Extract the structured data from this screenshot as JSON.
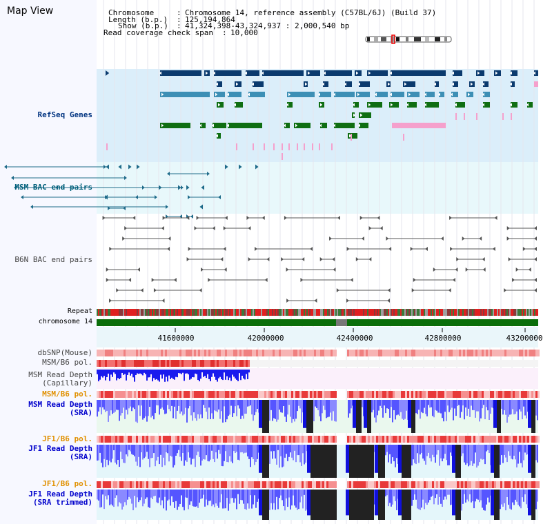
{
  "window": {
    "title": "Map View"
  },
  "header": {
    "chromosome_key": "Chromosome",
    "chromosome_val": "Chromosome 14, reference assembly (C57BL/6J) (Build 37)",
    "length_key": "Length (b.p.)",
    "length_val": "125,194,864",
    "show_key": "Show (b.p.)",
    "show_val": "41,324,398-43,324,937 : 2,000,540 bp",
    "coverage_key": "Read coverage check span",
    "coverage_val": "10,000"
  },
  "tracks": {
    "refseq": "RefSeq Genes",
    "msm_bac": "MSM BAC end pairs",
    "b6n_bac": "B6N BAC end pairs",
    "repeat": "Repeat",
    "chromosome": "chromosome 14",
    "dbsnp": "dbSNP(Mouse)",
    "msm_b6_pol_1": "MSM/B6 pol.",
    "msm_depth_cap_1": "MSM Read Depth",
    "msm_depth_cap_2": "(Capillary)",
    "msm_b6_pol_2": "MSM/B6 pol.",
    "msm_depth_sra_1": "MSM Read Depth",
    "msm_depth_sra_2": "(SRA)",
    "jf1_b6_pol_1": "JF1/B6 pol.",
    "jf1_depth_sra_1": "JF1 Read Depth",
    "jf1_depth_sra_2": "(SRA)",
    "jf1_b6_pol_2": "JF1/B6 pol.",
    "jf1_depth_trim_1": "JF1 Read Depth",
    "jf1_depth_trim_2": "(SRA trimmed)"
  },
  "ruler": {
    "ticks": [
      "41600000",
      "42000000",
      "42400000",
      "42800000",
      "43200000"
    ]
  },
  "colors": {
    "refseq_bg": "#dbeefa",
    "msm_bg": "#e8f8fb",
    "gene_dark": "#0b3a6e",
    "gene_mid": "#3d8fb5",
    "gene_green": "#0f6e12",
    "gene_pink": "#f5a0cc",
    "chrom": "#0a6e0a",
    "depth": "#1a1aee"
  }
}
